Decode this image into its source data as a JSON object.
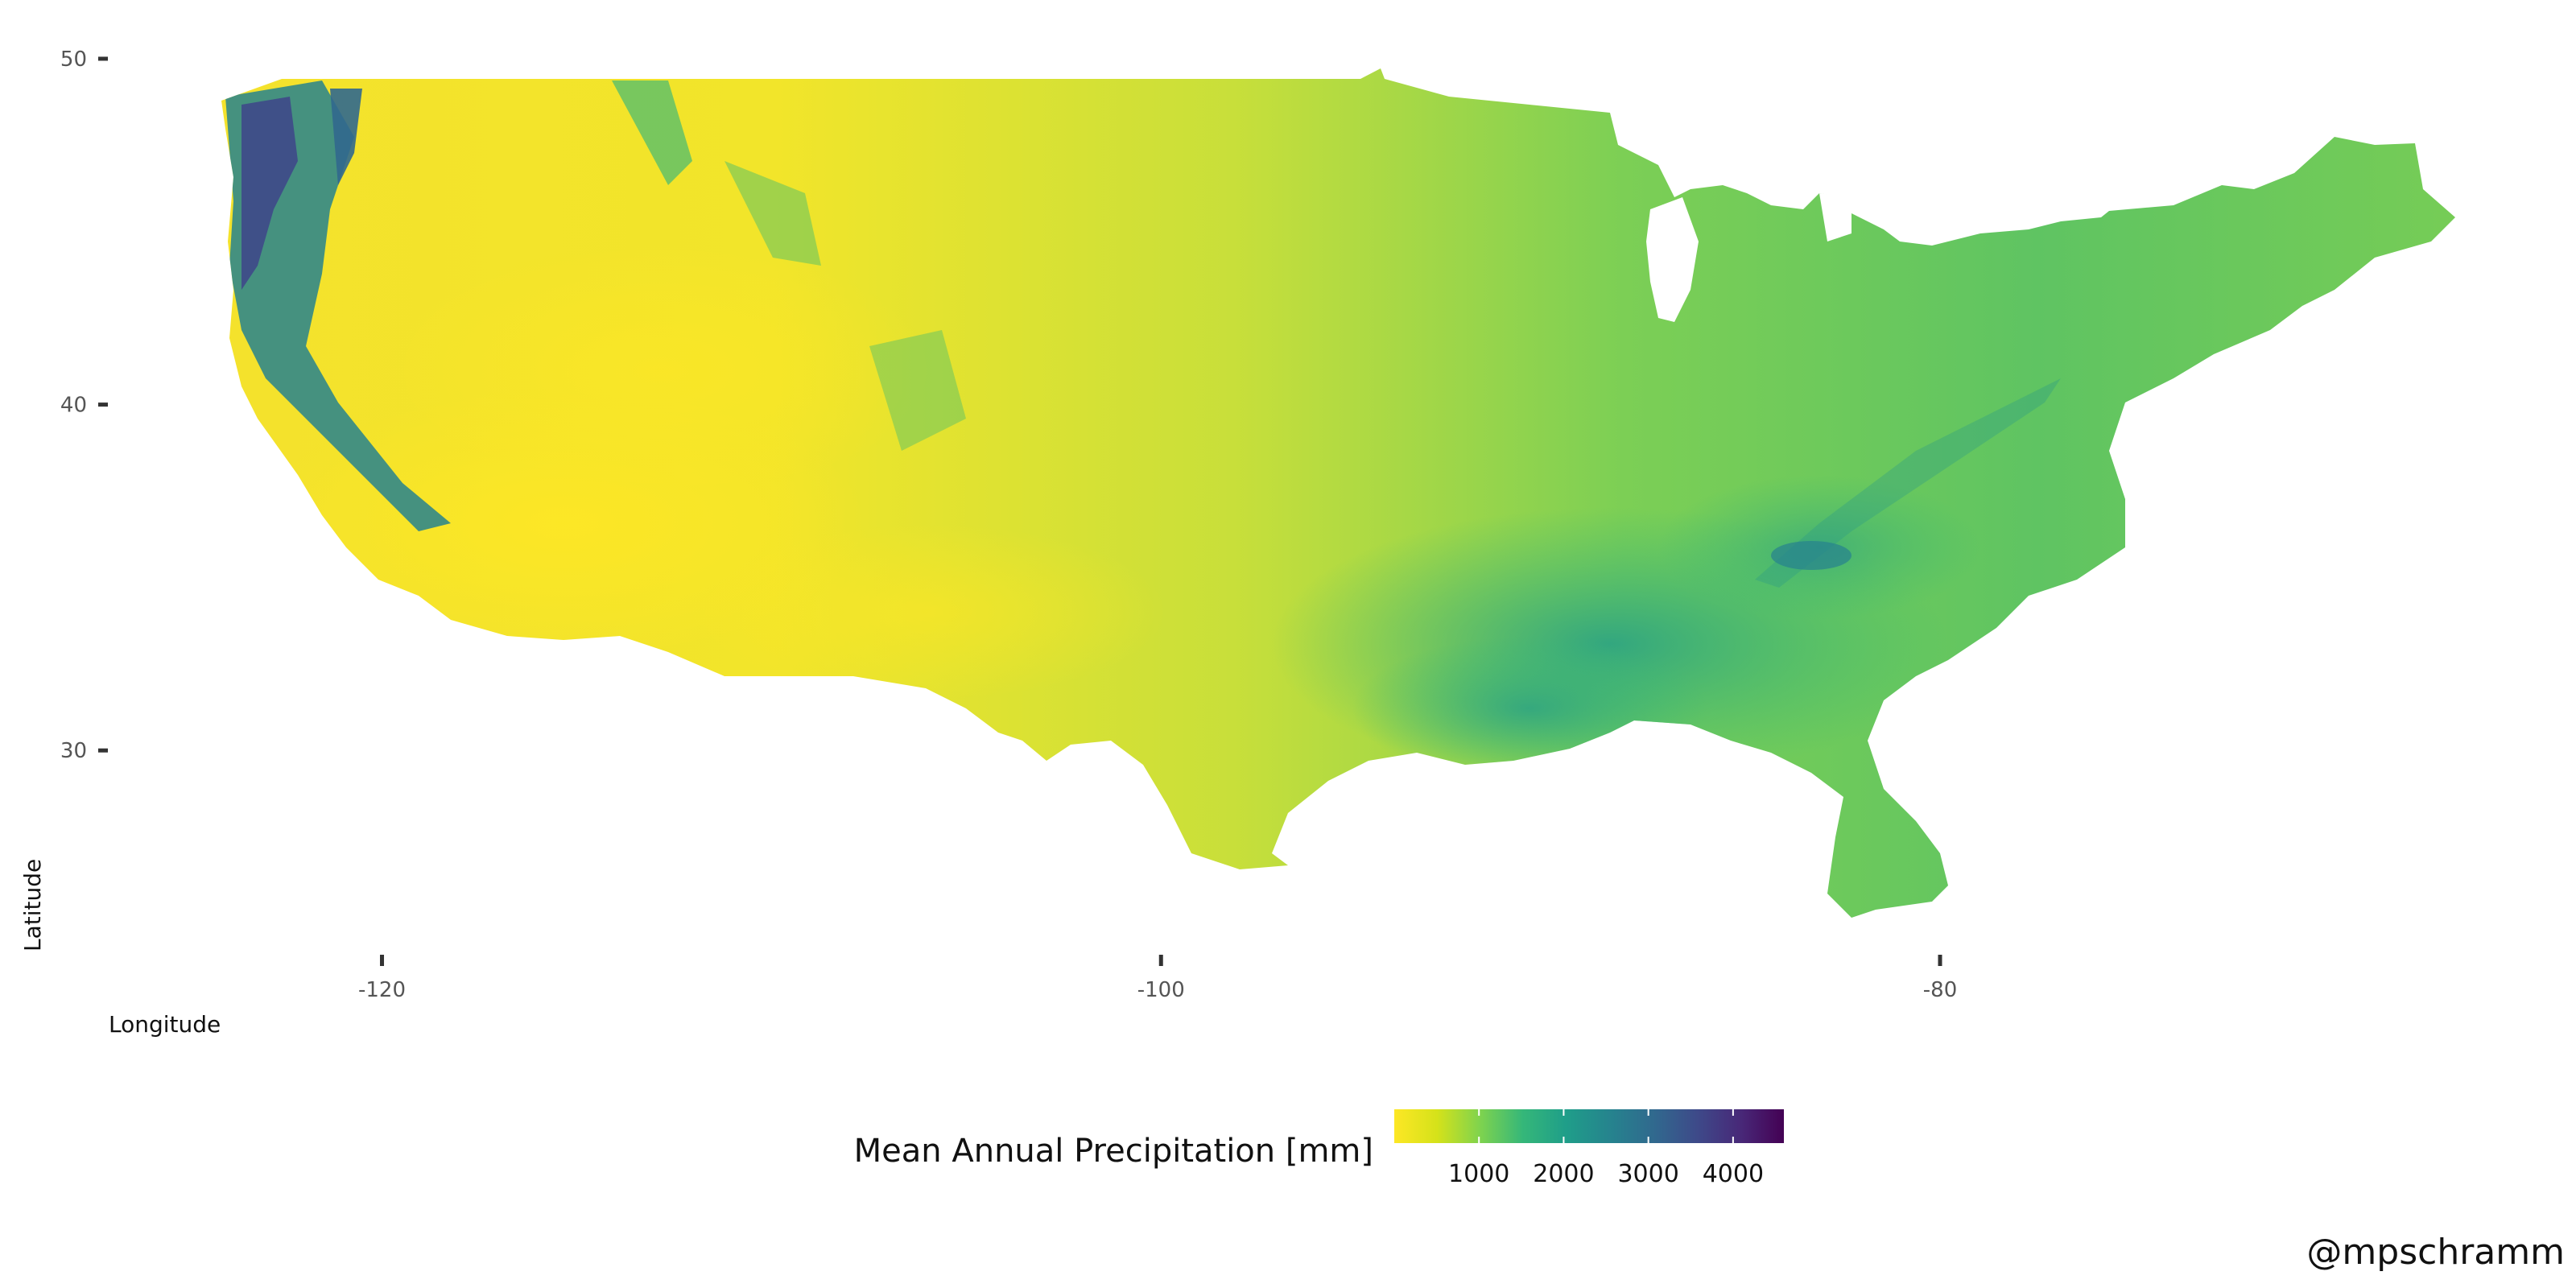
{
  "map": {
    "xlabel": "Longitude",
    "ylabel": "Latitude",
    "x_ticks": [
      {
        "value": -120,
        "label": "-120"
      },
      {
        "value": -100,
        "label": "-100"
      },
      {
        "value": -80,
        "label": "-80"
      }
    ],
    "y_ticks": [
      {
        "value": 50,
        "label": "50"
      },
      {
        "value": 40,
        "label": "40"
      },
      {
        "value": 30,
        "label": "30"
      }
    ],
    "xlim": [
      -126.5,
      -64.5
    ],
    "ylim": [
      24.0,
      51.0
    ],
    "colorscale": "viridis-reversed",
    "legend": {
      "title": "Mean Annual Precipitation [mm]",
      "min": 0,
      "max": 4600,
      "ticks": [
        {
          "value": 1000,
          "label": "1000"
        },
        {
          "value": 2000,
          "label": "2000"
        },
        {
          "value": 3000,
          "label": "3000"
        },
        {
          "value": 4000,
          "label": "4000"
        }
      ],
      "colors": [
        "#fde725",
        "#b5de2b",
        "#6ece58",
        "#35b779",
        "#1f9e89",
        "#26828e",
        "#31688e",
        "#3e4989",
        "#482878",
        "#440154"
      ]
    },
    "credit": "@mpschramm"
  }
}
